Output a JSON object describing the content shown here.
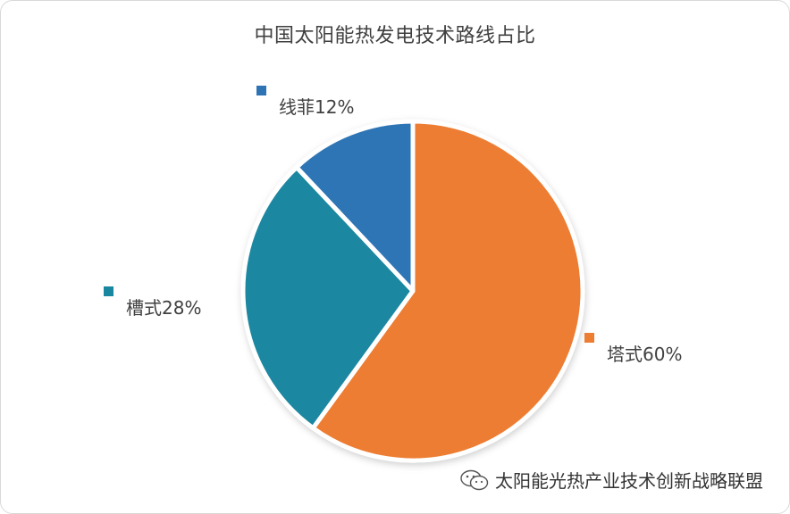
{
  "chart_data": {
    "type": "pie",
    "title": "中国太阳能热发电技术路线占比",
    "slices": [
      {
        "name": "塔式",
        "value": 60,
        "label": "塔式60%",
        "color": "#ED7D31"
      },
      {
        "name": "槽式",
        "value": 28,
        "label": "槽式28%",
        "color": "#1A87A0"
      },
      {
        "name": "线菲",
        "value": 12,
        "label": "线菲12%",
        "color": "#2E74B5"
      }
    ],
    "start_angle_deg": 0,
    "direction": "clockwise",
    "legend_placement": "around-pie"
  },
  "watermark": {
    "icon": "wechat-icon",
    "text": "太阳能光热产业技术创新战略联盟"
  }
}
